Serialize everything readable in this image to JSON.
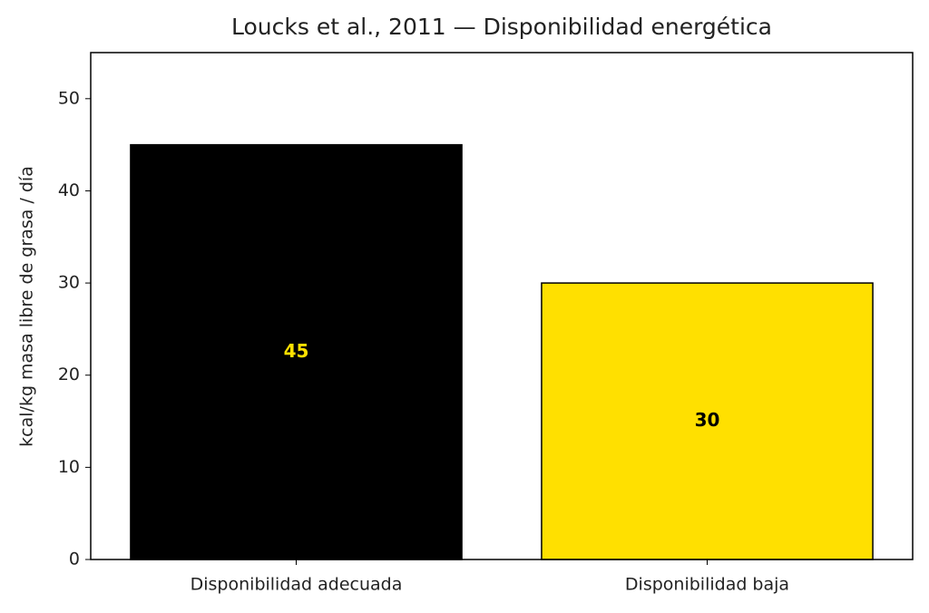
{
  "chart_data": {
    "type": "bar",
    "title": "Loucks et al., 2011 — Disponibilidad energética",
    "y_label": "kcal/kg masa libre de grasa / día",
    "categories": [
      "Disponibilidad adecuada",
      "Disponibilidad baja"
    ],
    "values": [
      45,
      30
    ],
    "colors": [
      "#000000",
      "#ffe000"
    ],
    "edge_color": "#000000",
    "value_label_colors": [
      "#ffe000",
      "#000000"
    ],
    "ylim": [
      0,
      55
    ],
    "yticks": [
      0,
      10,
      20,
      30,
      40,
      50
    ],
    "grid": false
  }
}
